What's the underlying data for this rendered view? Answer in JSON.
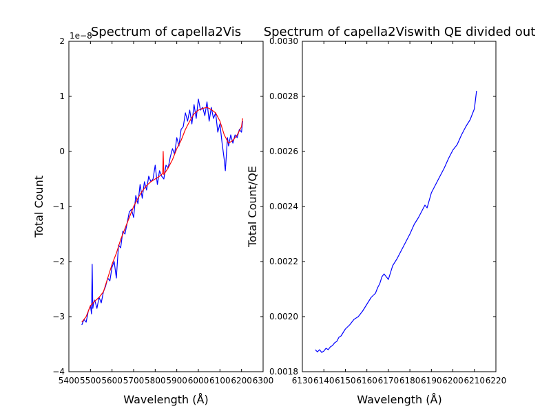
{
  "chart_data": [
    {
      "type": "line",
      "title": "Spectrum of capella2Vis",
      "xlabel": "Wavelength (Å)",
      "ylabel": "Total Count",
      "offset_text": "1e−8",
      "xlim": [
        5400,
        6300
      ],
      "ylim": [
        -4,
        2
      ],
      "xticks": [
        5400,
        5500,
        5600,
        5700,
        5800,
        5900,
        6000,
        6100,
        6200,
        6300
      ],
      "yticks": [
        -4,
        -3,
        -2,
        -1,
        0,
        1,
        2
      ],
      "grid": false,
      "series": [
        {
          "color": "#0000ff",
          "x": [
            5460,
            5470,
            5480,
            5490,
            5500,
            5505,
            5508,
            5511,
            5515,
            5520,
            5530,
            5540,
            5550,
            5560,
            5570,
            5580,
            5590,
            5600,
            5610,
            5620,
            5630,
            5640,
            5650,
            5660,
            5670,
            5680,
            5690,
            5700,
            5710,
            5720,
            5730,
            5740,
            5750,
            5760,
            5770,
            5780,
            5790,
            5800,
            5810,
            5820,
            5830,
            5840,
            5850,
            5860,
            5870,
            5880,
            5890,
            5900,
            5910,
            5920,
            5930,
            5940,
            5950,
            5960,
            5970,
            5980,
            5990,
            6000,
            6010,
            6020,
            6030,
            6040,
            6050,
            6060,
            6070,
            6080,
            6090,
            6100,
            6110,
            6120,
            6125,
            6130,
            6135,
            6140,
            6150,
            6160,
            6170,
            6180,
            6190,
            6200,
            6205
          ],
          "y": [
            -3.15,
            -3.05,
            -3.1,
            -2.9,
            -2.8,
            -2.95,
            -2.05,
            -2.85,
            -2.75,
            -2.7,
            -2.85,
            -2.65,
            -2.75,
            -2.55,
            -2.45,
            -2.3,
            -2.35,
            -2.1,
            -2.0,
            -2.3,
            -1.7,
            -1.75,
            -1.45,
            -1.5,
            -1.3,
            -1.1,
            -1.05,
            -1.2,
            -0.8,
            -0.95,
            -0.6,
            -0.85,
            -0.55,
            -0.7,
            -0.45,
            -0.55,
            -0.5,
            -0.25,
            -0.6,
            -0.35,
            -0.45,
            -0.5,
            -0.25,
            -0.3,
            -0.1,
            0.05,
            -0.05,
            0.25,
            0.1,
            0.4,
            0.45,
            0.7,
            0.55,
            0.75,
            0.5,
            0.85,
            0.6,
            0.95,
            0.75,
            0.8,
            0.65,
            0.9,
            0.55,
            0.8,
            0.6,
            0.7,
            0.35,
            0.5,
            0.15,
            -0.15,
            -0.35,
            -0.05,
            0.25,
            0.1,
            0.3,
            0.15,
            0.3,
            0.25,
            0.4,
            0.35,
            0.55
          ]
        },
        {
          "color": "#ff0000",
          "x": [
            5460,
            5480,
            5500,
            5520,
            5540,
            5560,
            5580,
            5600,
            5620,
            5640,
            5660,
            5680,
            5700,
            5720,
            5740,
            5760,
            5780,
            5800,
            5820,
            5835,
            5837,
            5840,
            5860,
            5880,
            5900,
            5920,
            5940,
            5960,
            5980,
            6000,
            6020,
            6040,
            6060,
            6080,
            6100,
            6120,
            6140,
            6160,
            6180,
            6200,
            6205
          ],
          "y": [
            -3.1,
            -3.0,
            -2.8,
            -2.72,
            -2.65,
            -2.55,
            -2.3,
            -2.05,
            -1.85,
            -1.6,
            -1.4,
            -1.2,
            -1.0,
            -0.85,
            -0.72,
            -0.62,
            -0.55,
            -0.5,
            -0.45,
            -0.4,
            0.0,
            -0.42,
            -0.3,
            -0.15,
            0.05,
            0.2,
            0.4,
            0.55,
            0.68,
            0.75,
            0.78,
            0.8,
            0.76,
            0.7,
            0.55,
            0.3,
            0.15,
            0.2,
            0.3,
            0.45,
            0.6
          ]
        }
      ]
    },
    {
      "type": "line",
      "title": "Spectrum of capella2Viswith QE divided out",
      "xlabel": "Wavelength (Å)",
      "ylabel": "Total Count/QE",
      "xlim": [
        6130,
        6220
      ],
      "ylim": [
        0.0018,
        0.003
      ],
      "xticks": [
        6130,
        6140,
        6150,
        6160,
        6170,
        6180,
        6190,
        6200,
        6210,
        6220
      ],
      "yticks": [
        0.0018,
        0.002,
        0.0022,
        0.0024,
        0.0026,
        0.0028,
        0.003
      ],
      "ytick_labels": [
        "0.0018",
        "0.0020",
        "0.0022",
        "0.0024",
        "0.0026",
        "0.0028",
        "0.0030"
      ],
      "grid": false,
      "series": [
        {
          "color": "#0000ff",
          "x": [
            6136,
            6137,
            6138,
            6139,
            6140,
            6141,
            6142,
            6143,
            6144,
            6145,
            6146,
            6147,
            6148,
            6150,
            6152,
            6154,
            6156,
            6158,
            6160,
            6162,
            6164,
            6165,
            6166,
            6167,
            6168,
            6170,
            6172,
            6174,
            6176,
            6178,
            6180,
            6182,
            6184,
            6186,
            6187,
            6188,
            6190,
            6192,
            6194,
            6196,
            6198,
            6200,
            6202,
            6204,
            6206,
            6208,
            6210,
            6211
          ],
          "y": [
            0.00188,
            0.001872,
            0.00188,
            0.00187,
            0.001875,
            0.001885,
            0.00188,
            0.00189,
            0.001895,
            0.001905,
            0.00191,
            0.001925,
            0.00193,
            0.001955,
            0.00197,
            0.00199,
            0.002,
            0.00202,
            0.002045,
            0.00207,
            0.002085,
            0.002105,
            0.00212,
            0.002145,
            0.002155,
            0.002135,
            0.002185,
            0.00221,
            0.00224,
            0.00227,
            0.0023,
            0.002335,
            0.00236,
            0.00239,
            0.002405,
            0.002395,
            0.00245,
            0.00248,
            0.00251,
            0.00254,
            0.002575,
            0.002605,
            0.002625,
            0.00266,
            0.00269,
            0.002715,
            0.002755,
            0.00282
          ]
        }
      ]
    }
  ]
}
